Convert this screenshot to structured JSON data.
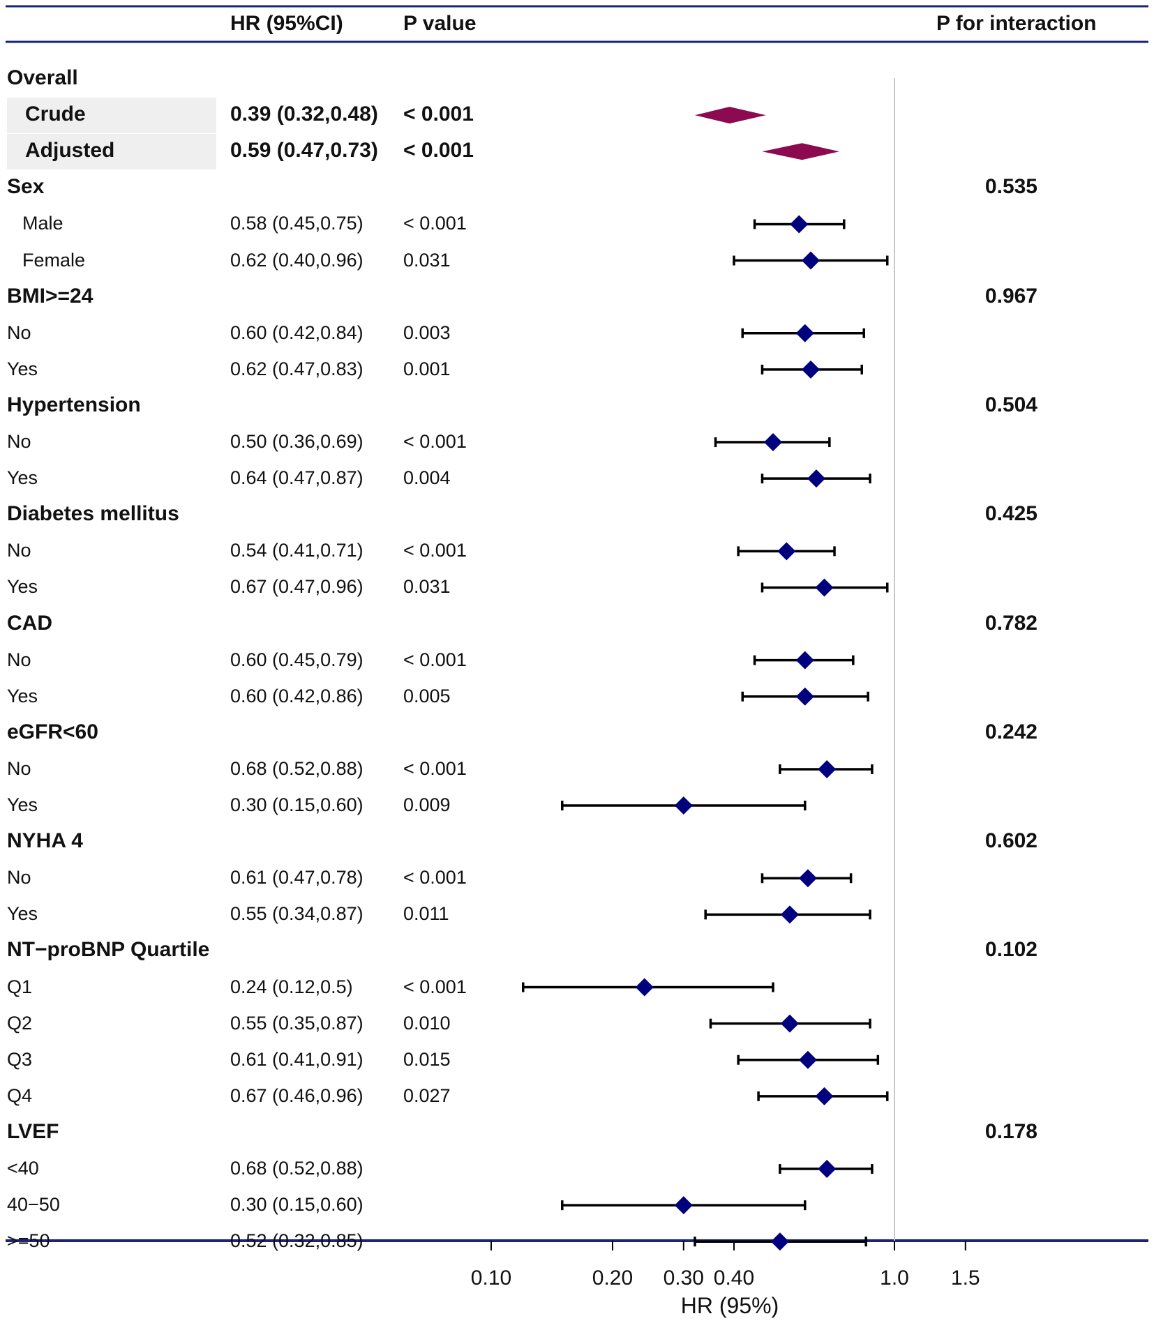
{
  "columns": {
    "hr": "HR (95%CI)",
    "p": "P value",
    "interaction": "P for interaction"
  },
  "colors": {
    "rule": "#1a237e",
    "pooled_diamond": "#8b0a50",
    "point_diamond": "#00007f",
    "ref_line": "#c8c8c8",
    "shade": "#efefef"
  },
  "chart_data": {
    "type": "forest",
    "xlabel": "HR (95%)",
    "xscale": "log",
    "xlim": [
      0.1,
      2.5
    ],
    "reference_line": 1.0,
    "ticks": [
      {
        "value": 0.1,
        "label": "0.10"
      },
      {
        "value": 0.2,
        "label": "0.20"
      },
      {
        "value": 0.3,
        "label": "0.30"
      },
      {
        "value": 0.4,
        "label": "0.40"
      },
      {
        "value": 1.0,
        "label": "1.0"
      },
      {
        "value": 1.5,
        "label": "1.5"
      }
    ],
    "rows": [
      {
        "kind": "section",
        "label": "Overall"
      },
      {
        "kind": "pooled",
        "label": "Crude",
        "hr_text": "0.39 (0.32,0.48)",
        "p": "< 0.001",
        "hr": 0.39,
        "lo": 0.32,
        "hi": 0.48
      },
      {
        "kind": "pooled",
        "label": "Adjusted",
        "hr_text": "0.59 (0.47,0.73)",
        "p": "< 0.001",
        "hr": 0.59,
        "lo": 0.47,
        "hi": 0.73
      },
      {
        "kind": "group",
        "label": "Sex",
        "p_int": "0.535"
      },
      {
        "kind": "item",
        "indent": true,
        "label": "Male",
        "hr_text": "0.58 (0.45,0.75)",
        "p": "< 0.001",
        "hr": 0.58,
        "lo": 0.45,
        "hi": 0.75
      },
      {
        "kind": "item",
        "indent": true,
        "label": "Female",
        "hr_text": "0.62 (0.40,0.96)",
        "p": "0.031",
        "hr": 0.62,
        "lo": 0.4,
        "hi": 0.96
      },
      {
        "kind": "group",
        "label": "BMI>=24",
        "p_int": "0.967"
      },
      {
        "kind": "item",
        "label": "No",
        "hr_text": "0.60 (0.42,0.84)",
        "p": "0.003",
        "hr": 0.6,
        "lo": 0.42,
        "hi": 0.84
      },
      {
        "kind": "item",
        "label": "Yes",
        "hr_text": "0.62 (0.47,0.83)",
        "p": "0.001",
        "hr": 0.62,
        "lo": 0.47,
        "hi": 0.83
      },
      {
        "kind": "group",
        "label": "Hypertension",
        "p_int": "0.504"
      },
      {
        "kind": "item",
        "label": "No",
        "hr_text": "0.50 (0.36,0.69)",
        "p": "< 0.001",
        "hr": 0.5,
        "lo": 0.36,
        "hi": 0.69
      },
      {
        "kind": "item",
        "label": "Yes",
        "hr_text": "0.64 (0.47,0.87)",
        "p": "0.004",
        "hr": 0.64,
        "lo": 0.47,
        "hi": 0.87
      },
      {
        "kind": "group",
        "label": "Diabetes mellitus",
        "p_int": "0.425"
      },
      {
        "kind": "item",
        "label": "No",
        "hr_text": "0.54 (0.41,0.71)",
        "p": "< 0.001",
        "hr": 0.54,
        "lo": 0.41,
        "hi": 0.71
      },
      {
        "kind": "item",
        "label": "Yes",
        "hr_text": "0.67 (0.47,0.96)",
        "p": "0.031",
        "hr": 0.67,
        "lo": 0.47,
        "hi": 0.96
      },
      {
        "kind": "group",
        "label": "CAD",
        "p_int": "0.782"
      },
      {
        "kind": "item",
        "label": "No",
        "hr_text": "0.60 (0.45,0.79)",
        "p": "< 0.001",
        "hr": 0.6,
        "lo": 0.45,
        "hi": 0.79
      },
      {
        "kind": "item",
        "label": "Yes",
        "hr_text": "0.60 (0.42,0.86)",
        "p": "0.005",
        "hr": 0.6,
        "lo": 0.42,
        "hi": 0.86
      },
      {
        "kind": "group",
        "label": "eGFR<60",
        "p_int": "0.242"
      },
      {
        "kind": "item",
        "label": "No",
        "hr_text": "0.68 (0.52,0.88)",
        "p": "< 0.001",
        "hr": 0.68,
        "lo": 0.52,
        "hi": 0.88
      },
      {
        "kind": "item",
        "label": "Yes",
        "hr_text": "0.30 (0.15,0.60)",
        "p": "0.009",
        "hr": 0.3,
        "lo": 0.15,
        "hi": 0.6
      },
      {
        "kind": "group",
        "label": "NYHA 4",
        "p_int": "0.602"
      },
      {
        "kind": "item",
        "label": "No",
        "hr_text": "0.61 (0.47,0.78)",
        "p": "< 0.001",
        "hr": 0.61,
        "lo": 0.47,
        "hi": 0.78
      },
      {
        "kind": "item",
        "label": "Yes",
        "hr_text": "0.55 (0.34,0.87)",
        "p": "0.011",
        "hr": 0.55,
        "lo": 0.34,
        "hi": 0.87
      },
      {
        "kind": "group",
        "label": "NT−proBNP Quartile",
        "p_int": "0.102"
      },
      {
        "kind": "item",
        "label": "Q1",
        "hr_text": "0.24 (0.12,0.5)",
        "p": "< 0.001",
        "hr": 0.24,
        "lo": 0.12,
        "hi": 0.5
      },
      {
        "kind": "item",
        "label": "Q2",
        "hr_text": "0.55 (0.35,0.87)",
        "p": "0.010",
        "hr": 0.55,
        "lo": 0.35,
        "hi": 0.87
      },
      {
        "kind": "item",
        "label": "Q3",
        "hr_text": "0.61 (0.41,0.91)",
        "p": "0.015",
        "hr": 0.61,
        "lo": 0.41,
        "hi": 0.91
      },
      {
        "kind": "item",
        "label": "Q4",
        "hr_text": "0.67 (0.46,0.96)",
        "p": "0.027",
        "hr": 0.67,
        "lo": 0.46,
        "hi": 0.96
      },
      {
        "kind": "group",
        "label": "LVEF",
        "p_int": "0.178"
      },
      {
        "kind": "item",
        "label": "<40",
        "hr_text": "0.68 (0.52,0.88)",
        "p": "",
        "hr": 0.68,
        "lo": 0.52,
        "hi": 0.88
      },
      {
        "kind": "item",
        "label": "40−50",
        "hr_text": "0.30 (0.15,0.60)",
        "p": "",
        "hr": 0.3,
        "lo": 0.15,
        "hi": 0.6
      },
      {
        "kind": "item",
        "label": ">=50",
        "hr_text": "0.52 (0.32,0.85)",
        "p": "",
        "hr": 0.52,
        "lo": 0.32,
        "hi": 0.85
      }
    ]
  }
}
